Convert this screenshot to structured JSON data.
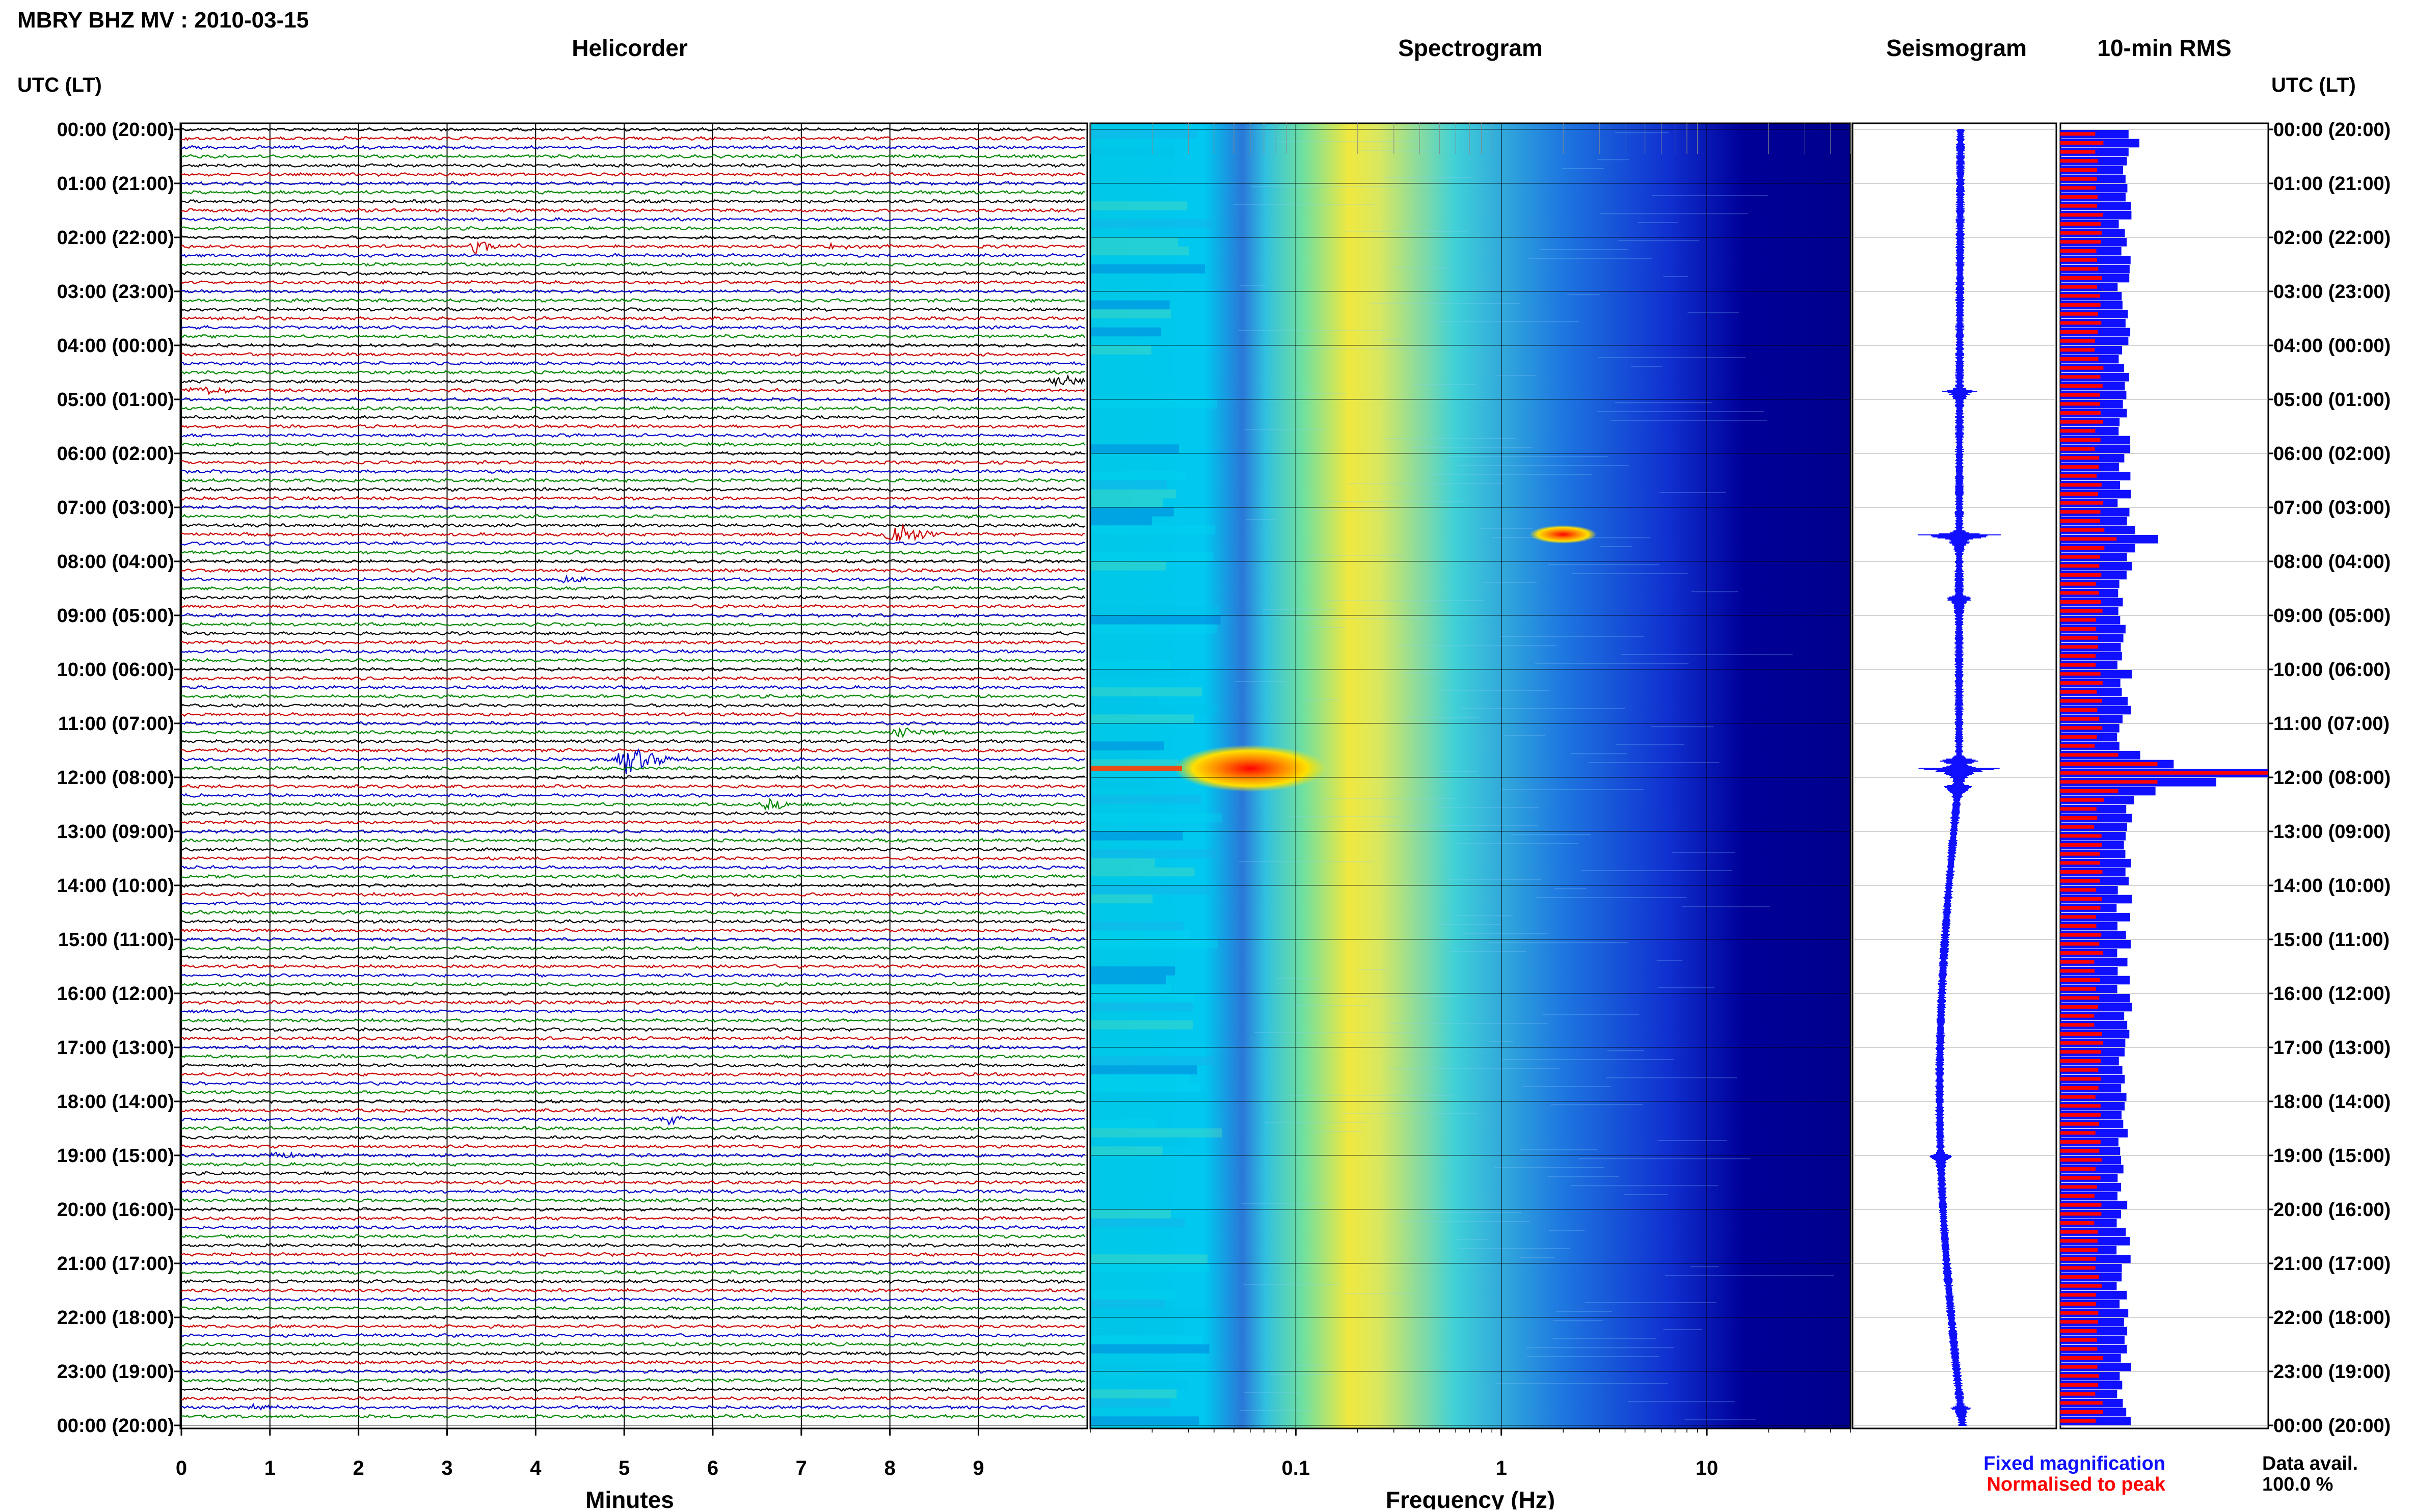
{
  "title": "MBRY BHZ MV : 2010-03-15",
  "colors": {
    "fixed": "#1010ff",
    "normalised": "#ff0000",
    "trace_cycle": [
      "#000000",
      "#cc0000",
      "#0000cc",
      "#008800"
    ],
    "frame": "#000000",
    "spectro_cold": "#00008c",
    "spectro_hot": "#ff0000"
  },
  "chart_data": [
    {
      "type": "line",
      "title": "Helicorder",
      "xlabel": "Minutes",
      "ylabel": "UTC (LT)",
      "xlim": [
        0,
        10
      ],
      "xticks": [
        "0",
        "1",
        "2",
        "3",
        "4",
        "5",
        "6",
        "7",
        "8",
        "9"
      ],
      "lines_per_hour": 6,
      "minutes_per_line": 10,
      "time_labels_utc_lt": [
        "00:00 (20:00)",
        "01:00 (21:00)",
        "02:00 (22:00)",
        "03:00 (23:00)",
        "04:00 (00:00)",
        "05:00 (01:00)",
        "06:00 (02:00)",
        "07:00 (03:00)",
        "08:00 (04:00)",
        "09:00 (05:00)",
        "10:00 (06:00)",
        "11:00 (07:00)",
        "12:00 (08:00)",
        "13:00 (09:00)",
        "14:00 (10:00)",
        "15:00 (11:00)",
        "16:00 (12:00)",
        "17:00 (13:00)",
        "18:00 (14:00)",
        "19:00 (15:00)",
        "20:00 (16:00)",
        "21:00 (17:00)",
        "22:00 (18:00)",
        "23:00 (19:00)",
        "00:00 (20:00)"
      ],
      "events": [
        {
          "utc": "02:10",
          "minute": 3.3,
          "amp": 3.5
        },
        {
          "utc": "02:10",
          "minute": 7.3,
          "amp": 1.5
        },
        {
          "utc": "04:50",
          "minute": 0.15,
          "amp": 3
        },
        {
          "utc": "04:40",
          "minute": 9.9,
          "amp": 4
        },
        {
          "utc": "07:30",
          "minute": 8.0,
          "amp": 9
        },
        {
          "utc": "08:20",
          "minute": 4.3,
          "amp": 3
        },
        {
          "utc": "11:10",
          "minute": 8.1,
          "amp": 3
        },
        {
          "utc": "11:40",
          "minute": 5.0,
          "amp": 10
        },
        {
          "utc": "12:30",
          "minute": 6.6,
          "amp": 3
        },
        {
          "utc": "18:20",
          "minute": 5.5,
          "amp": 2.5
        },
        {
          "utc": "19:00",
          "minute": 1.0,
          "amp": 2.5
        },
        {
          "utc": "23:40",
          "minute": 0.8,
          "amp": 2
        }
      ]
    },
    {
      "type": "heatmap",
      "title": "Spectrogram",
      "xlabel": "Frequency (Hz)",
      "xscale": "log",
      "xlim": [
        0.01,
        50
      ],
      "xticks": [
        "0.1",
        "1",
        "10"
      ],
      "peak_band_hz": 0.3,
      "events": [
        {
          "utc": "11:50",
          "freq_hz": 0.06,
          "strength": 1.0
        },
        {
          "utc": "07:30",
          "freq_hz": 2.0,
          "strength": 0.3
        }
      ]
    },
    {
      "type": "line",
      "title": "Seismogram",
      "events": [
        {
          "utc": "04:50",
          "amp": 12
        },
        {
          "utc": "07:30",
          "amp": 30
        },
        {
          "utc": "08:40",
          "amp": 10
        },
        {
          "utc": "11:40",
          "amp": 16
        },
        {
          "utc": "11:50",
          "amp": 32
        },
        {
          "utc": "12:10",
          "amp": 12
        },
        {
          "utc": "19:00",
          "amp": 8
        },
        {
          "utc": "23:40",
          "amp": 6
        }
      ]
    },
    {
      "type": "bar",
      "title": "10-min RMS",
      "xlim": [
        0,
        1
      ],
      "series": [
        {
          "name": "Fixed magnification",
          "base": 0.3,
          "peaks": [
            {
              "utc": "00:10",
              "value": 0.38
            },
            {
              "utc": "07:30",
              "value": 0.47
            },
            {
              "utc": "11:50",
              "value": 1.0
            },
            {
              "utc": "12:00",
              "value": 0.75
            }
          ]
        },
        {
          "name": "Normalised to peak",
          "base": 0.18,
          "peaks": [
            {
              "utc": "07:30",
              "value": 0.27
            },
            {
              "utc": "11:50",
              "value": 1.0
            },
            {
              "utc": "12:00",
              "value": 0.42
            }
          ]
        }
      ]
    }
  ],
  "legend": {
    "fixed_label": "Fixed magnification",
    "normalised_label": "Normalised to peak",
    "data_avail_label": "Data avail.",
    "data_avail_value": "100.0 %"
  }
}
